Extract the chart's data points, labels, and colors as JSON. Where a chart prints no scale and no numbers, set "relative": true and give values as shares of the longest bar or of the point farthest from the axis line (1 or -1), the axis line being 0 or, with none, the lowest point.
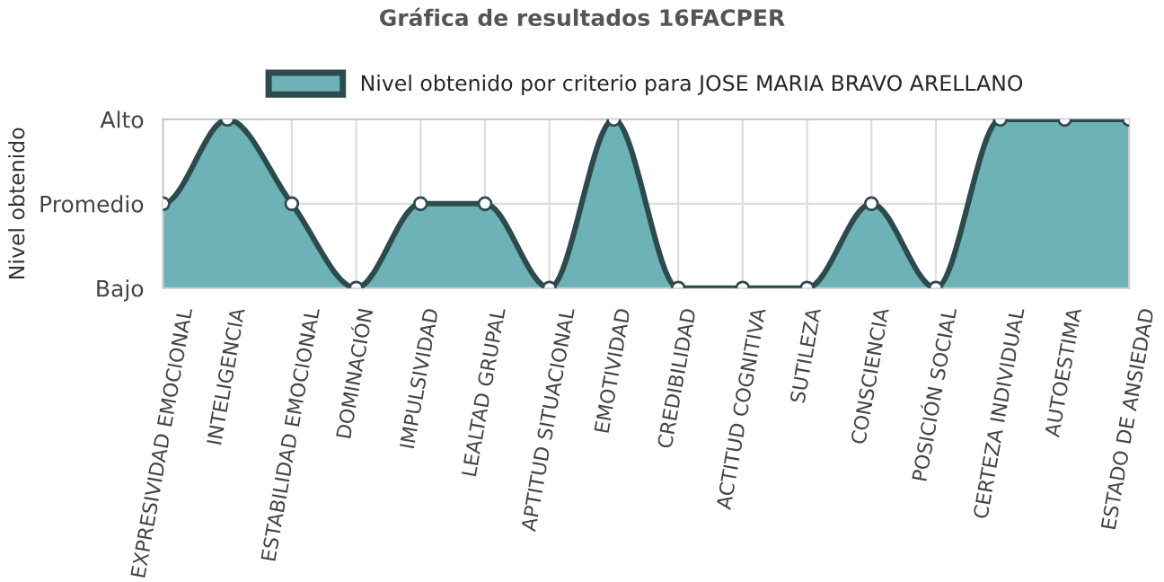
{
  "chart_data": {
    "type": "area",
    "title": "Gráfica de resultados 16FACPER",
    "ylabel": "Nivel obtenido",
    "relative": true,
    "categories": [
      "EXPRESIVIDAD EMOCIONAL",
      "INTELIGENCIA",
      "ESTABILIDAD EMOCIONAL",
      "DOMINACIÓN",
      "IMPULSIVIDAD",
      "LEALTAD GRUPAL",
      "APTITUD SITUACIONAL",
      "EMOTIVIDAD",
      "CREDIBILIDAD",
      "ACTITUD COGNITIVA",
      "SUTILEZA",
      "CONSCIENCIA",
      "POSICIÓN SOCIAL",
      "CERTEZA INDIVIDUAL",
      "AUTOESTIMA",
      "ESTADO DE ANSIEDAD"
    ],
    "y_categories": [
      "Alto",
      "Promedio",
      "Bajo"
    ],
    "series": [
      {
        "name": "Nivel obtenido por criterio para JOSE MARIA BRAVO ARELLANO",
        "color": "#6cb2b6",
        "values": [
          0.5,
          1,
          0.5,
          0,
          0.5,
          0.5,
          0,
          1,
          0,
          0,
          0,
          0.5,
          0,
          1,
          1,
          1
        ]
      }
    ],
    "grid": true,
    "legend": "top",
    "marker": "circle",
    "line_style": "solid"
  }
}
